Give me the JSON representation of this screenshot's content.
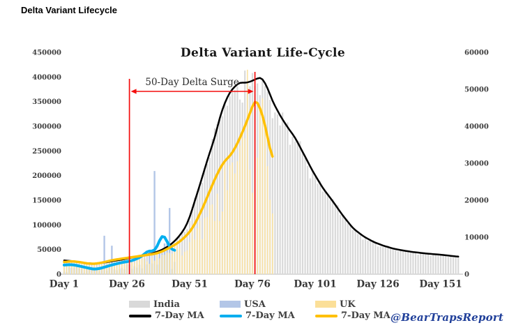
{
  "header": {
    "title": "Delta Variant Lifecycle"
  },
  "chart_data": {
    "type": "combo-bar-line",
    "title": "Delta Variant Life-Cycle",
    "watermark": "@BearTrapsReport",
    "x_axis": {
      "unit": "day",
      "day_range": [
        1,
        158
      ],
      "ticks": [
        {
          "day": 1,
          "label": "Day 1"
        },
        {
          "day": 26,
          "label": "Day 26"
        },
        {
          "day": 51,
          "label": "Day 51"
        },
        {
          "day": 76,
          "label": "Day 76"
        },
        {
          "day": 101,
          "label": "Day 101"
        },
        {
          "day": 126,
          "label": "Day 126"
        },
        {
          "day": 151,
          "label": "Day 151"
        }
      ]
    },
    "left_axis": {
      "range": [
        0,
        450000
      ],
      "ticks": [
        {
          "value": 450000,
          "label": "450000"
        },
        {
          "value": 400000,
          "label": "400000"
        },
        {
          "value": 350000,
          "label": "350000"
        },
        {
          "value": 300000,
          "label": "300000"
        },
        {
          "value": 250000,
          "label": "250000"
        },
        {
          "value": 200000,
          "label": "200000"
        },
        {
          "value": 150000,
          "label": "150000"
        },
        {
          "value": 100000,
          "label": "100000"
        },
        {
          "value": 50000,
          "label": "50000"
        },
        {
          "value": 0,
          "label": "0"
        }
      ]
    },
    "right_axis": {
      "range": [
        0,
        60000
      ],
      "ticks": [
        {
          "value": 60000,
          "label": "60000"
        },
        {
          "value": 50000,
          "label": "50000"
        },
        {
          "value": 40000,
          "label": "40000"
        },
        {
          "value": 30000,
          "label": "30000"
        },
        {
          "value": 20000,
          "label": "20000"
        },
        {
          "value": 10000,
          "label": "10000"
        },
        {
          "value": 0,
          "label": "0"
        }
      ]
    },
    "annotation": {
      "label": "50-Day Delta Surge",
      "start_day": 27,
      "end_day": 77,
      "color": "#f40d0d"
    },
    "series": [
      {
        "name": "India",
        "type": "bar",
        "axis": "left",
        "color": "#d9d9d9",
        "start_day": 1,
        "end_day": 158,
        "envelope_ref": "India 7-Day MA",
        "noise": {
          "seed": 3.7,
          "base": 0.98,
          "random": 0.06,
          "weekly": 0.04
        },
        "spikes": [
          [
            73,
            413000
          ],
          [
            76,
            408000
          ]
        ]
      },
      {
        "name": "India 7-Day MA",
        "type": "line",
        "axis": "left",
        "color": "#000000",
        "width": 2.5,
        "points": [
          [
            1,
            28000
          ],
          [
            5,
            26000
          ],
          [
            9,
            23000
          ],
          [
            13,
            21200
          ],
          [
            17,
            23500
          ],
          [
            21,
            27000
          ],
          [
            25,
            30500
          ],
          [
            28,
            33500
          ],
          [
            31,
            36500
          ],
          [
            34,
            39500
          ],
          [
            37,
            43500
          ],
          [
            40,
            49500
          ],
          [
            43,
            58000
          ],
          [
            46,
            72000
          ],
          [
            49,
            92000
          ],
          [
            51,
            115000
          ],
          [
            53,
            148000
          ],
          [
            55,
            180000
          ],
          [
            57,
            214000
          ],
          [
            59,
            247000
          ],
          [
            61,
            277000
          ],
          [
            63,
            318000
          ],
          [
            65,
            348000
          ],
          [
            67,
            369000
          ],
          [
            69,
            381000
          ],
          [
            71,
            389000
          ],
          [
            73,
            388000
          ],
          [
            75,
            390000
          ],
          [
            77,
            395000
          ],
          [
            79,
            399000
          ],
          [
            80,
            397000
          ],
          [
            82,
            378000
          ],
          [
            84,
            351000
          ],
          [
            87,
            322000
          ],
          [
            90,
            298000
          ],
          [
            93,
            277000
          ],
          [
            96,
            248000
          ],
          [
            100,
            209000
          ],
          [
            104,
            175000
          ],
          [
            108,
            148000
          ],
          [
            112,
            119000
          ],
          [
            116,
            93500
          ],
          [
            120,
            77500
          ],
          [
            124,
            66000
          ],
          [
            128,
            58000
          ],
          [
            132,
            52000
          ],
          [
            136,
            48000
          ],
          [
            140,
            45000
          ],
          [
            145,
            42000
          ],
          [
            150,
            40000
          ],
          [
            154,
            37800
          ],
          [
            158,
            35500
          ]
        ]
      },
      {
        "name": "USA",
        "type": "bar",
        "axis": "right",
        "color": "#b3c6e7",
        "start_day": 1,
        "end_day": 45,
        "envelope_ref": "USA 7-Day MA",
        "noise": {
          "seed": 9.1,
          "base": 0.62,
          "random": 0.34,
          "weekly": 0.12
        },
        "spikes": [
          [
            17,
            10400
          ],
          [
            20,
            7700
          ],
          [
            37,
            27900
          ],
          [
            43,
            17900
          ]
        ]
      },
      {
        "name": "USA 7-Day MA",
        "type": "line",
        "axis": "right",
        "color": "#00aeef",
        "width": 4,
        "points": [
          [
            1,
            2450
          ],
          [
            3,
            2600
          ],
          [
            5,
            2500
          ],
          [
            7,
            2200
          ],
          [
            9,
            1900
          ],
          [
            11,
            1600
          ],
          [
            13,
            1350
          ],
          [
            15,
            1500
          ],
          [
            17,
            1900
          ],
          [
            19,
            2300
          ],
          [
            21,
            2700
          ],
          [
            23,
            3000
          ],
          [
            25,
            3300
          ],
          [
            27,
            3500
          ],
          [
            29,
            3900
          ],
          [
            31,
            4500
          ],
          [
            33,
            5400
          ],
          [
            34,
            6200
          ],
          [
            35,
            6300
          ],
          [
            36,
            6200
          ],
          [
            37,
            6400
          ],
          [
            38,
            7300
          ],
          [
            39,
            9200
          ],
          [
            40,
            10600
          ],
          [
            41,
            10300
          ],
          [
            42,
            8900
          ],
          [
            43,
            7200
          ],
          [
            44,
            6700
          ],
          [
            45,
            6400
          ]
        ]
      },
      {
        "name": "UK",
        "type": "bar",
        "axis": "right",
        "color": "#fbe3a4",
        "start_day": 1,
        "end_day": 84,
        "envelope_ref": "UK 7-Day MA",
        "noise": {
          "seed": 5.3,
          "base": 0.8,
          "random": 0.22,
          "weekly": 0.12
        },
        "spikes": [
          [
            74,
            55300
          ]
        ]
      },
      {
        "name": "UK 7-Day MA",
        "type": "line",
        "axis": "right",
        "color": "#ffc000",
        "width": 3.5,
        "points": [
          [
            1,
            3300
          ],
          [
            4,
            3500
          ],
          [
            7,
            3300
          ],
          [
            10,
            2900
          ],
          [
            13,
            2800
          ],
          [
            16,
            3100
          ],
          [
            19,
            3600
          ],
          [
            22,
            4000
          ],
          [
            25,
            4300
          ],
          [
            28,
            4600
          ],
          [
            31,
            4900
          ],
          [
            34,
            5200
          ],
          [
            37,
            5500
          ],
          [
            40,
            6100
          ],
          [
            43,
            7200
          ],
          [
            45,
            7900
          ],
          [
            47,
            8800
          ],
          [
            49,
            10000
          ],
          [
            51,
            11400
          ],
          [
            53,
            13500
          ],
          [
            55,
            16200
          ],
          [
            57,
            19200
          ],
          [
            59,
            22500
          ],
          [
            61,
            25700
          ],
          [
            63,
            28500
          ],
          [
            65,
            30700
          ],
          [
            67,
            31900
          ],
          [
            69,
            34000
          ],
          [
            71,
            36800
          ],
          [
            73,
            40000
          ],
          [
            75,
            43500
          ],
          [
            77,
            47200
          ],
          [
            78,
            46500
          ],
          [
            79,
            45000
          ],
          [
            80,
            43000
          ],
          [
            81,
            40500
          ],
          [
            82,
            37000
          ],
          [
            83,
            34000
          ],
          [
            84,
            31100
          ]
        ]
      }
    ],
    "legend": {
      "rows": [
        {
          "items": [
            {
              "label": "India",
              "kind": "bar",
              "color": "#d9d9d9"
            },
            {
              "label": "USA",
              "kind": "bar",
              "color": "#b3c6e7"
            },
            {
              "label": "UK",
              "kind": "bar",
              "color": "#fbdf98"
            }
          ]
        },
        {
          "items": [
            {
              "label": "7-Day MA",
              "kind": "line",
              "color": "#000000"
            },
            {
              "label": "7-Day MA",
              "kind": "line",
              "color": "#00aeef"
            },
            {
              "label": "7-Day MA",
              "kind": "line",
              "color": "#ffc000"
            }
          ]
        }
      ]
    }
  }
}
